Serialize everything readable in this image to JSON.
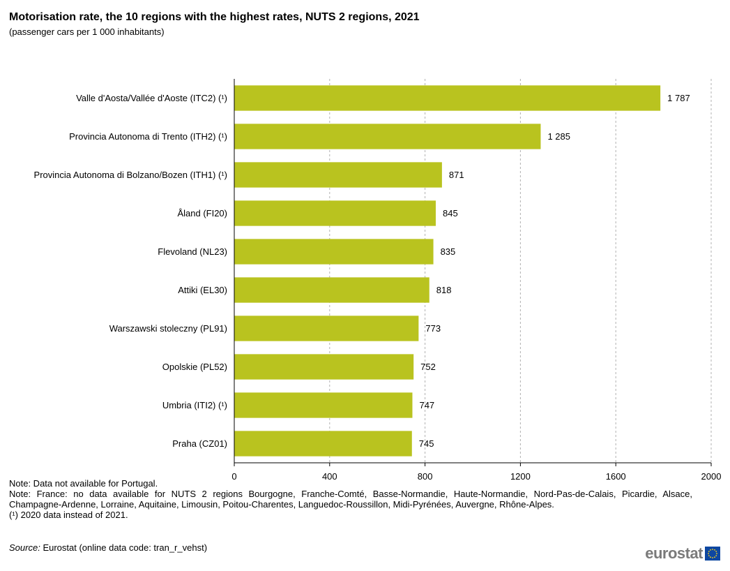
{
  "header": {
    "title": "Motorisation rate, the 10 regions with the highest rates, NUTS 2 regions, 2021",
    "subtitle": "(passenger cars per 1 000 inhabitants)"
  },
  "chart_data": {
    "type": "bar",
    "orientation": "horizontal",
    "categories": [
      "Valle d'Aosta/Vallée d'Aoste (ITC2) (¹)",
      "Provincia Autonoma di Trento (ITH2) (¹)",
      "Provincia Autonoma di Bolzano/Bozen (ITH1) (¹)",
      "Åland (FI20)",
      "Flevoland (NL23)",
      "Attiki (EL30)",
      "Warszawski stoleczny (PL91)",
      "Opolskie (PL52)",
      "Umbria (ITI2) (¹)",
      "Praha (CZ01)"
    ],
    "values": [
      1787,
      1285,
      871,
      845,
      835,
      818,
      773,
      752,
      747,
      745
    ],
    "value_labels": [
      "1 787",
      "1 285",
      "871",
      "845",
      "835",
      "818",
      "773",
      "752",
      "747",
      "745"
    ],
    "xlim": [
      0,
      2000
    ],
    "xticks": [
      0,
      400,
      800,
      1200,
      1600,
      2000
    ],
    "grid": "vertical dashed",
    "bar_color": "#b9c31f"
  },
  "notes": [
    "Note: Data not available for Portugal.",
    "Note: France: no data available for NUTS 2 regions Bourgogne, Franche-Comté, Basse-Normandie, Haute-Normandie, Nord-Pas-de-Calais, Picardie, Alsace, Champagne-Ardenne, Lorraine, Aquitaine, Limousin, Poitou-Charentes, Languedoc-Roussillon, Midi-Pyrénées, Auvergne, Rhône-Alpes.",
    "(¹) 2020 data instead of 2021."
  ],
  "source": {
    "label": "Source:",
    "text": "Eurostat (online data code: tran_r_vehst)"
  },
  "logo": {
    "text": "eurostat",
    "icon": "eu-flag-icon"
  }
}
